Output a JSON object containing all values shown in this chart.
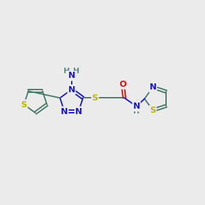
{
  "bg_color": "#ebebeb",
  "bond_color": "#4a7a6a",
  "N_color": "#1a1acc",
  "S_color": "#b8b800",
  "O_color": "#dd1111",
  "H_color": "#5a8a8a",
  "figsize": [
    3.0,
    3.0
  ],
  "dpi": 100,
  "xlim": [
    0,
    12
  ],
  "ylim": [
    0,
    10
  ]
}
